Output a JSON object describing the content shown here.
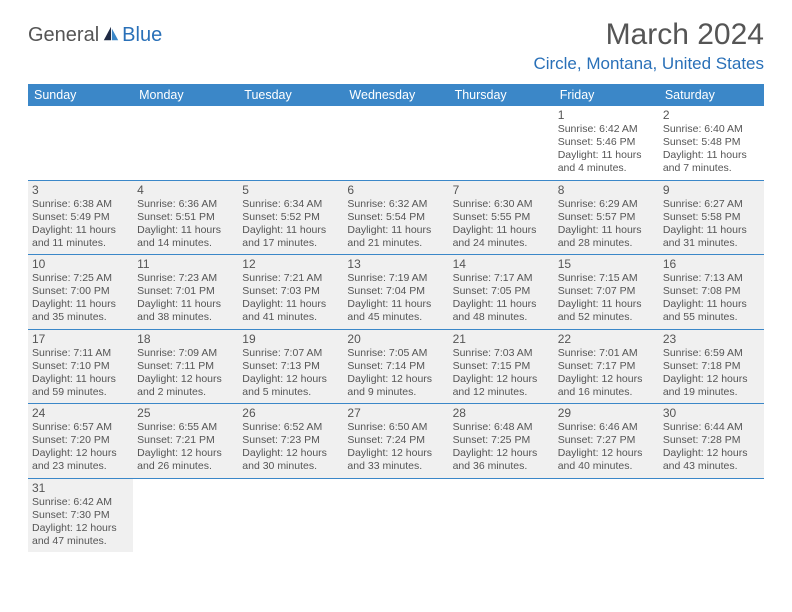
{
  "logo": {
    "general": "General",
    "blue": "Blue"
  },
  "title": "March 2024",
  "location": "Circle, Montana, United States",
  "colors": {
    "header_bg": "#3b87c8",
    "accent": "#2970b8",
    "text": "#555555",
    "shade": "#f0f0f0",
    "background": "#ffffff"
  },
  "day_headers": [
    "Sunday",
    "Monday",
    "Tuesday",
    "Wednesday",
    "Thursday",
    "Friday",
    "Saturday"
  ],
  "weeks": [
    [
      {
        "day": "",
        "blank": true
      },
      {
        "day": "",
        "blank": true
      },
      {
        "day": "",
        "blank": true
      },
      {
        "day": "",
        "blank": true
      },
      {
        "day": "",
        "blank": true
      },
      {
        "day": "1",
        "sunrise": "Sunrise: 6:42 AM",
        "sunset": "Sunset: 5:46 PM",
        "daylight1": "Daylight: 11 hours",
        "daylight2": "and 4 minutes."
      },
      {
        "day": "2",
        "sunrise": "Sunrise: 6:40 AM",
        "sunset": "Sunset: 5:48 PM",
        "daylight1": "Daylight: 11 hours",
        "daylight2": "and 7 minutes."
      }
    ],
    [
      {
        "day": "3",
        "shaded": true,
        "sunrise": "Sunrise: 6:38 AM",
        "sunset": "Sunset: 5:49 PM",
        "daylight1": "Daylight: 11 hours",
        "daylight2": "and 11 minutes."
      },
      {
        "day": "4",
        "shaded": true,
        "sunrise": "Sunrise: 6:36 AM",
        "sunset": "Sunset: 5:51 PM",
        "daylight1": "Daylight: 11 hours",
        "daylight2": "and 14 minutes."
      },
      {
        "day": "5",
        "shaded": true,
        "sunrise": "Sunrise: 6:34 AM",
        "sunset": "Sunset: 5:52 PM",
        "daylight1": "Daylight: 11 hours",
        "daylight2": "and 17 minutes."
      },
      {
        "day": "6",
        "shaded": true,
        "sunrise": "Sunrise: 6:32 AM",
        "sunset": "Sunset: 5:54 PM",
        "daylight1": "Daylight: 11 hours",
        "daylight2": "and 21 minutes."
      },
      {
        "day": "7",
        "shaded": true,
        "sunrise": "Sunrise: 6:30 AM",
        "sunset": "Sunset: 5:55 PM",
        "daylight1": "Daylight: 11 hours",
        "daylight2": "and 24 minutes."
      },
      {
        "day": "8",
        "shaded": true,
        "sunrise": "Sunrise: 6:29 AM",
        "sunset": "Sunset: 5:57 PM",
        "daylight1": "Daylight: 11 hours",
        "daylight2": "and 28 minutes."
      },
      {
        "day": "9",
        "shaded": true,
        "sunrise": "Sunrise: 6:27 AM",
        "sunset": "Sunset: 5:58 PM",
        "daylight1": "Daylight: 11 hours",
        "daylight2": "and 31 minutes."
      }
    ],
    [
      {
        "day": "10",
        "shaded": true,
        "sunrise": "Sunrise: 7:25 AM",
        "sunset": "Sunset: 7:00 PM",
        "daylight1": "Daylight: 11 hours",
        "daylight2": "and 35 minutes."
      },
      {
        "day": "11",
        "shaded": true,
        "sunrise": "Sunrise: 7:23 AM",
        "sunset": "Sunset: 7:01 PM",
        "daylight1": "Daylight: 11 hours",
        "daylight2": "and 38 minutes."
      },
      {
        "day": "12",
        "shaded": true,
        "sunrise": "Sunrise: 7:21 AM",
        "sunset": "Sunset: 7:03 PM",
        "daylight1": "Daylight: 11 hours",
        "daylight2": "and 41 minutes."
      },
      {
        "day": "13",
        "shaded": true,
        "sunrise": "Sunrise: 7:19 AM",
        "sunset": "Sunset: 7:04 PM",
        "daylight1": "Daylight: 11 hours",
        "daylight2": "and 45 minutes."
      },
      {
        "day": "14",
        "shaded": true,
        "sunrise": "Sunrise: 7:17 AM",
        "sunset": "Sunset: 7:05 PM",
        "daylight1": "Daylight: 11 hours",
        "daylight2": "and 48 minutes."
      },
      {
        "day": "15",
        "shaded": true,
        "sunrise": "Sunrise: 7:15 AM",
        "sunset": "Sunset: 7:07 PM",
        "daylight1": "Daylight: 11 hours",
        "daylight2": "and 52 minutes."
      },
      {
        "day": "16",
        "shaded": true,
        "sunrise": "Sunrise: 7:13 AM",
        "sunset": "Sunset: 7:08 PM",
        "daylight1": "Daylight: 11 hours",
        "daylight2": "and 55 minutes."
      }
    ],
    [
      {
        "day": "17",
        "shaded": true,
        "sunrise": "Sunrise: 7:11 AM",
        "sunset": "Sunset: 7:10 PM",
        "daylight1": "Daylight: 11 hours",
        "daylight2": "and 59 minutes."
      },
      {
        "day": "18",
        "shaded": true,
        "sunrise": "Sunrise: 7:09 AM",
        "sunset": "Sunset: 7:11 PM",
        "daylight1": "Daylight: 12 hours",
        "daylight2": "and 2 minutes."
      },
      {
        "day": "19",
        "shaded": true,
        "sunrise": "Sunrise: 7:07 AM",
        "sunset": "Sunset: 7:13 PM",
        "daylight1": "Daylight: 12 hours",
        "daylight2": "and 5 minutes."
      },
      {
        "day": "20",
        "shaded": true,
        "sunrise": "Sunrise: 7:05 AM",
        "sunset": "Sunset: 7:14 PM",
        "daylight1": "Daylight: 12 hours",
        "daylight2": "and 9 minutes."
      },
      {
        "day": "21",
        "shaded": true,
        "sunrise": "Sunrise: 7:03 AM",
        "sunset": "Sunset: 7:15 PM",
        "daylight1": "Daylight: 12 hours",
        "daylight2": "and 12 minutes."
      },
      {
        "day": "22",
        "shaded": true,
        "sunrise": "Sunrise: 7:01 AM",
        "sunset": "Sunset: 7:17 PM",
        "daylight1": "Daylight: 12 hours",
        "daylight2": "and 16 minutes."
      },
      {
        "day": "23",
        "shaded": true,
        "sunrise": "Sunrise: 6:59 AM",
        "sunset": "Sunset: 7:18 PM",
        "daylight1": "Daylight: 12 hours",
        "daylight2": "and 19 minutes."
      }
    ],
    [
      {
        "day": "24",
        "shaded": true,
        "sunrise": "Sunrise: 6:57 AM",
        "sunset": "Sunset: 7:20 PM",
        "daylight1": "Daylight: 12 hours",
        "daylight2": "and 23 minutes."
      },
      {
        "day": "25",
        "shaded": true,
        "sunrise": "Sunrise: 6:55 AM",
        "sunset": "Sunset: 7:21 PM",
        "daylight1": "Daylight: 12 hours",
        "daylight2": "and 26 minutes."
      },
      {
        "day": "26",
        "shaded": true,
        "sunrise": "Sunrise: 6:52 AM",
        "sunset": "Sunset: 7:23 PM",
        "daylight1": "Daylight: 12 hours",
        "daylight2": "and 30 minutes."
      },
      {
        "day": "27",
        "shaded": true,
        "sunrise": "Sunrise: 6:50 AM",
        "sunset": "Sunset: 7:24 PM",
        "daylight1": "Daylight: 12 hours",
        "daylight2": "and 33 minutes."
      },
      {
        "day": "28",
        "shaded": true,
        "sunrise": "Sunrise: 6:48 AM",
        "sunset": "Sunset: 7:25 PM",
        "daylight1": "Daylight: 12 hours",
        "daylight2": "and 36 minutes."
      },
      {
        "day": "29",
        "shaded": true,
        "sunrise": "Sunrise: 6:46 AM",
        "sunset": "Sunset: 7:27 PM",
        "daylight1": "Daylight: 12 hours",
        "daylight2": "and 40 minutes."
      },
      {
        "day": "30",
        "shaded": true,
        "sunrise": "Sunrise: 6:44 AM",
        "sunset": "Sunset: 7:28 PM",
        "daylight1": "Daylight: 12 hours",
        "daylight2": "and 43 minutes."
      }
    ],
    [
      {
        "day": "31",
        "shaded": true,
        "sunrise": "Sunrise: 6:42 AM",
        "sunset": "Sunset: 7:30 PM",
        "daylight1": "Daylight: 12 hours",
        "daylight2": "and 47 minutes."
      },
      {
        "day": "",
        "blank": true
      },
      {
        "day": "",
        "blank": true
      },
      {
        "day": "",
        "blank": true
      },
      {
        "day": "",
        "blank": true
      },
      {
        "day": "",
        "blank": true
      },
      {
        "day": "",
        "blank": true
      }
    ]
  ]
}
